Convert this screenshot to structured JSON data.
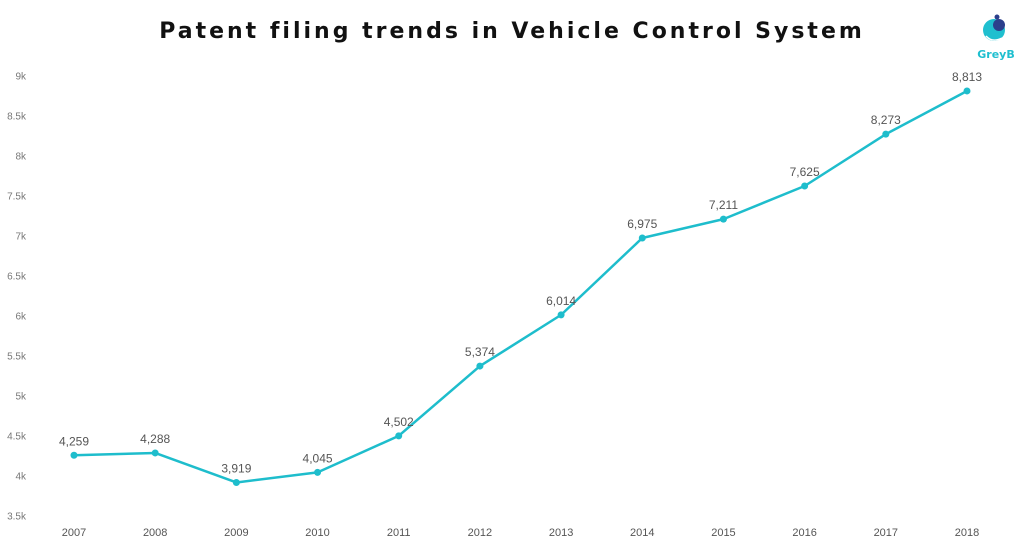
{
  "chart_data": {
    "type": "line",
    "title": "Patent filing trends in Vehicle Control System",
    "xlabel": "",
    "ylabel": "",
    "categories": [
      "2007",
      "2008",
      "2009",
      "2010",
      "2011",
      "2012",
      "2013",
      "2014",
      "2015",
      "2016",
      "2017",
      "2018"
    ],
    "series": [
      {
        "values": [
          4259,
          4288,
          3919,
          4045,
          4502,
          5374,
          6014,
          6975,
          7211,
          7625,
          8273,
          8813
        ],
        "data_labels": [
          "4,259",
          "4,288",
          "3,919",
          "4,045",
          "4,502",
          "5,374",
          "6,014",
          "6,975",
          "7,211",
          "7,625",
          "8,273",
          "8,813"
        ]
      }
    ],
    "ylim": [
      3500,
      9000
    ],
    "yticks": [
      3500,
      4000,
      4500,
      5000,
      5500,
      6000,
      6500,
      7000,
      7500,
      8000,
      8500,
      9000
    ],
    "ytick_labels": [
      "3.5k",
      "4k",
      "4.5k",
      "5k",
      "5.5k",
      "6k",
      "6.5k",
      "7k",
      "7.5k",
      "8k",
      "8.5k",
      "9k"
    ],
    "grid": false,
    "legend": "none",
    "line_color": "#1ebdcc"
  },
  "logo": {
    "text": "GreyB",
    "color": "#1fbfcf"
  }
}
